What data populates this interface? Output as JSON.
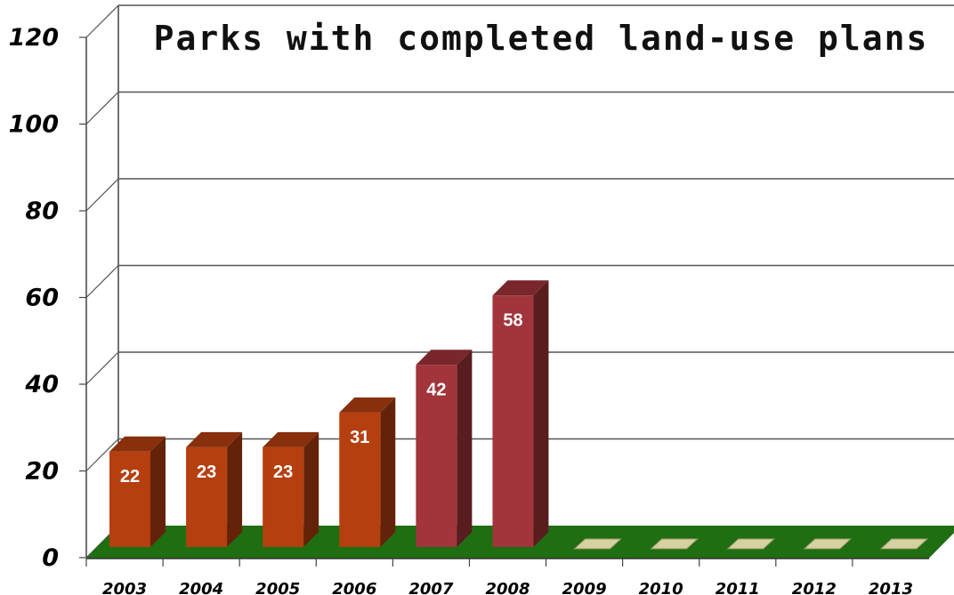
{
  "chart_data": {
    "type": "bar",
    "title": "Parks with completed land-use plans",
    "xlabel": "",
    "ylabel": "",
    "ylim": [
      0,
      120
    ],
    "yticks": [
      "0",
      "20",
      "40",
      "60",
      "80",
      "100",
      "120"
    ],
    "grid": true,
    "legend": "none",
    "categories": [
      "2003",
      "2004",
      "2005",
      "2006",
      "2007",
      "2008",
      "2009",
      "2010",
      "2011",
      "2012",
      "2013"
    ],
    "values": [
      22,
      23,
      23,
      31,
      42,
      58,
      null,
      null,
      null,
      null,
      null
    ],
    "data_labels": [
      "22",
      "23",
      "23",
      "31",
      "42",
      "58",
      "",
      "",
      "",
      "",
      ""
    ],
    "colors": {
      "bars_2003_2006": "#b53f0f",
      "bars_2007_2008": "#a2343b",
      "empty_years": "#d6d2a0",
      "floor": "#1f6e12",
      "gridlines": "#555555"
    }
  }
}
